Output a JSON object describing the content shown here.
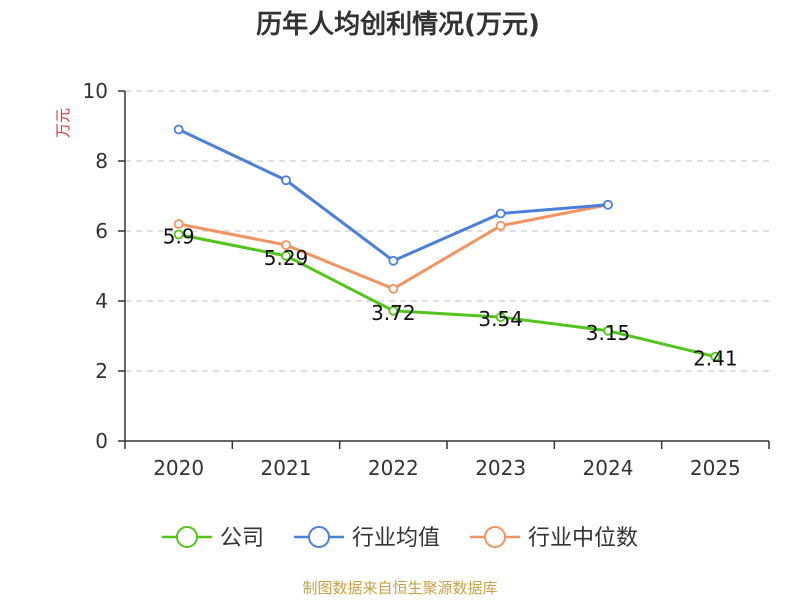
{
  "chart_data": {
    "type": "line",
    "title": "历年人均创利情况(万元)",
    "ylabel": "万元",
    "xlabel": "",
    "categories": [
      "2020",
      "2021",
      "2022",
      "2023",
      "2024",
      "2025"
    ],
    "ylim": [
      0,
      10
    ],
    "yticks": [
      0,
      2,
      4,
      6,
      8,
      10
    ],
    "grid": true,
    "legend_position": "bottom",
    "series": [
      {
        "name": "公司",
        "color": "#52c41a",
        "values": [
          5.9,
          5.29,
          3.72,
          3.54,
          3.15,
          2.41
        ],
        "labels": [
          "5.9",
          "5.29",
          "3.72",
          "3.54",
          "3.15",
          "2.41"
        ]
      },
      {
        "name": "行业均值",
        "color": "#4a7fdb",
        "values": [
          8.9,
          7.45,
          5.15,
          6.5,
          6.75,
          null
        ]
      },
      {
        "name": "行业中位数",
        "color": "#f49362",
        "values": [
          6.2,
          5.6,
          4.35,
          6.15,
          6.75,
          null
        ]
      }
    ]
  },
  "colors": {
    "ylabel": "#d9363e",
    "source": "#c8a24a",
    "grid": "#cccccc",
    "axis": "#333333"
  },
  "source": "制图数据来自恒生聚源数据库"
}
